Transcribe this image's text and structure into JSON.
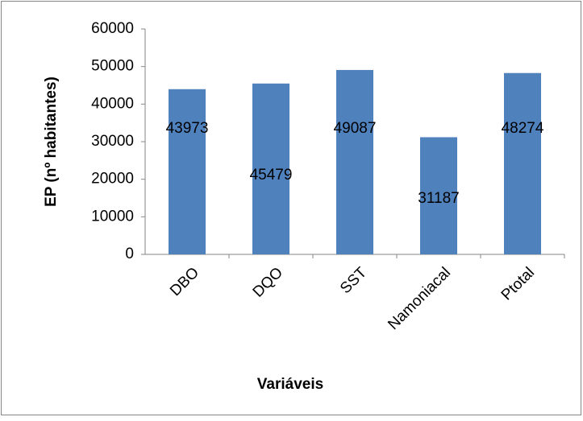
{
  "chart_data": {
    "type": "bar",
    "categories": [
      "DBO",
      "DQO",
      "SST",
      "Namoniacal",
      "Ptotal"
    ],
    "values": [
      43973,
      45479,
      49087,
      31187,
      48274
    ],
    "color": "#4f81bd",
    "xlabel": "Variáveis",
    "ylabel": "EP (nº habitantes)",
    "ylim": [
      0,
      60000
    ],
    "yticks": [
      0,
      10000,
      20000,
      30000,
      40000,
      50000,
      60000
    ],
    "grid": false
  }
}
